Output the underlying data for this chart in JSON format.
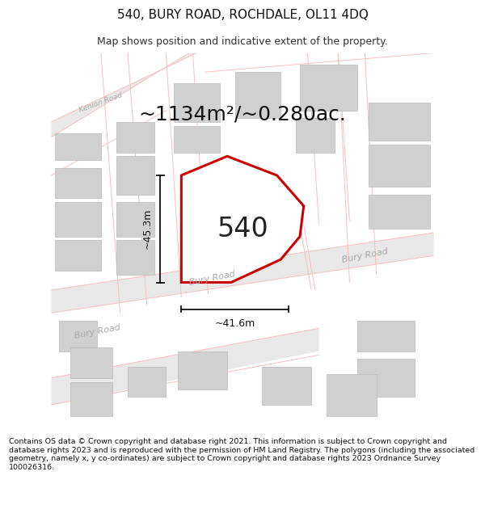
{
  "title": "540, BURY ROAD, ROCHDALE, OL11 4DQ",
  "subtitle": "Map shows position and indicative extent of the property.",
  "area_label": "~1134m²/~0.280ac.",
  "plot_number": "540",
  "dim_vertical": "~45.3m",
  "dim_horizontal": "~41.6m",
  "footer": "Contains OS data © Crown copyright and database right 2021. This information is subject to Crown copyright and database rights 2023 and is reproduced with the permission of HM Land Registry. The polygons (including the associated geometry, namely x, y co-ordinates) are subject to Crown copyright and database rights 2023 Ordnance Survey 100026316.",
  "bg_color": "#ffffff",
  "map_bg": "#f0f0f0",
  "building_fill": "#d0d0d0",
  "building_edge": "#bbbbbb",
  "property_fill": "#ffffff",
  "property_edge": "#cc0000",
  "road_fill": "#e8e8e8",
  "road_label_color": "#aaaaaa",
  "dim_line_color": "#111111",
  "title_fontsize": 11,
  "subtitle_fontsize": 9,
  "area_fontsize": 18,
  "plot_num_fontsize": 24,
  "dim_fontsize": 9,
  "road_label_fontsize": 8,
  "footer_fontsize": 6.8
}
